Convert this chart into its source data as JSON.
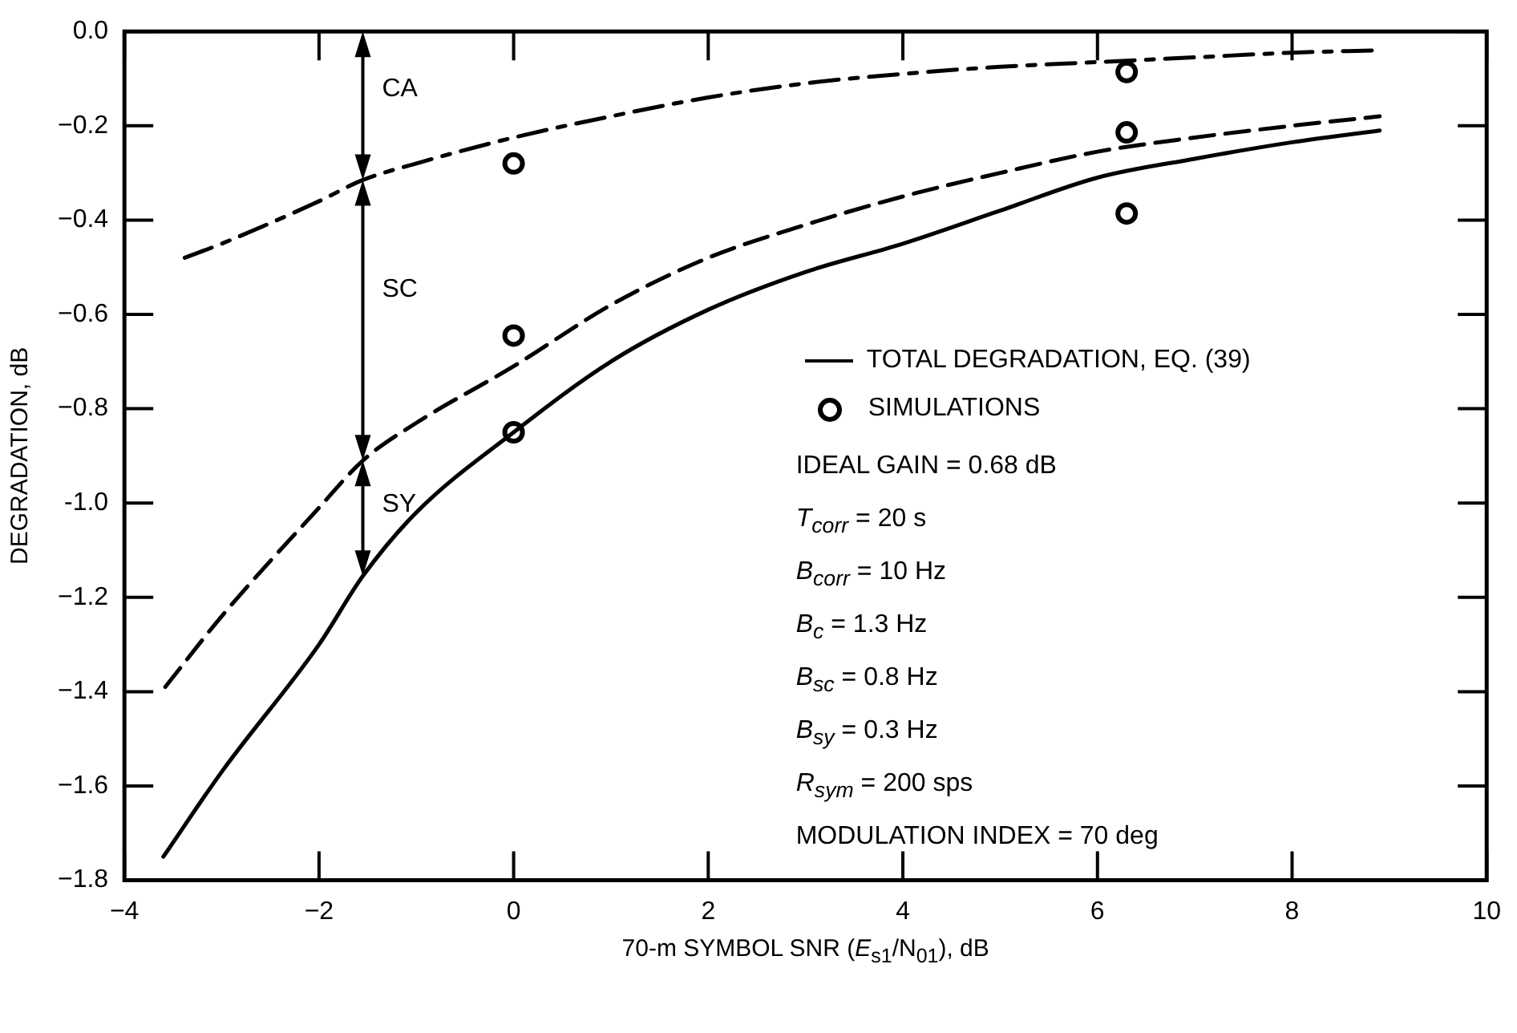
{
  "chart_data": {
    "type": "line",
    "xlabel": "70-m SYMBOL SNR (E$_{s1}$/N$_{01}$), dB",
    "ylabel": "DEGRADATION, dB",
    "xlim": [
      -4,
      10
    ],
    "xticks": [
      -4,
      -2,
      0,
      2,
      4,
      6,
      8,
      10
    ],
    "ylim": [
      -1.8,
      0
    ],
    "yticks": [
      {
        "value": 0,
        "label": "0.0"
      },
      -0.2,
      -0.4,
      -0.6,
      -0.8,
      {
        "value": -1,
        "label": "-1.0"
      },
      -1.2,
      -1.4,
      -1.6,
      -1.8
    ],
    "grid": false,
    "legend": "right",
    "series": [
      {
        "line_style": "dashdot",
        "color": "#000000",
        "x": [
          -3.38,
          -3,
          -2,
          -1.55,
          -1,
          0,
          1,
          2,
          3,
          4,
          5,
          6,
          7,
          8,
          8.9
        ],
        "values": [
          -0.48,
          -0.45,
          -0.36,
          -0.315,
          -0.28,
          -0.225,
          -0.18,
          -0.14,
          -0.11,
          -0.09,
          -0.075,
          -0.065,
          -0.055,
          -0.045,
          -0.04
        ]
      },
      {
        "line_style": "dashed",
        "color": "#000000",
        "x": [
          -3.58,
          -3,
          -2,
          -1.55,
          -1,
          0,
          1,
          2,
          3,
          4,
          5,
          6,
          7,
          8,
          8.9
        ],
        "values": [
          -1.39,
          -1.24,
          -1.01,
          -0.91,
          -0.83,
          -0.71,
          -0.58,
          -0.48,
          -0.41,
          -0.35,
          -0.3,
          -0.255,
          -0.225,
          -0.2,
          -0.18
        ]
      },
      {
        "line_style": "solid",
        "name": "TOTAL DEGRADATION, EQ. (39)",
        "color": "#000000",
        "x": [
          -3.6,
          -3,
          -2,
          -1.55,
          -1,
          0,
          1,
          2,
          3,
          4,
          5,
          6,
          7,
          8,
          8.9
        ],
        "values": [
          -1.75,
          -1.57,
          -1.3,
          -1.155,
          -1.02,
          -0.85,
          -0.7,
          -0.59,
          -0.51,
          -0.45,
          -0.38,
          -0.31,
          -0.27,
          -0.235,
          -0.21
        ]
      },
      {
        "type": "scatter",
        "marker": "circle",
        "name": "SIMULATIONS",
        "color": "#000000",
        "x": [
          0,
          0,
          0,
          6.3,
          6.3,
          6.3
        ],
        "values": [
          -0.28,
          -0.645,
          -0.85,
          -0.086,
          -0.214,
          -0.386
        ]
      }
    ],
    "annotations": [
      "CA",
      "SC",
      "SY",
      "IDEAL GAIN = 0.68 dB",
      "T$_{corr}$ = 20 s",
      "B$_{corr}$ = 10 Hz",
      "B$_{c}$ = 1.3 Hz",
      "B$_{sc}$ = 0.8 Hz",
      "B$_{sy}$ = 0.3 Hz",
      "R$_{sym}$ = 200 sps",
      "MODULATION INDEX = 70 deg"
    ]
  }
}
